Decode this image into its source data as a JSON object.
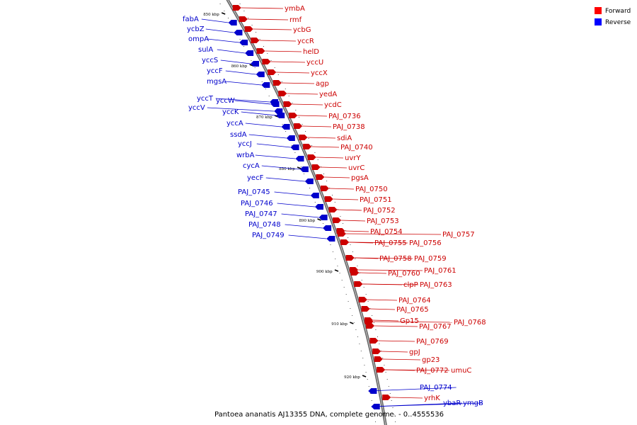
{
  "caption": "Pantoea ananatis AJ13355 DNA, complete genome. - 0..4555536",
  "legend": [
    {
      "label": "Forward",
      "color": "#ff0000"
    },
    {
      "label": "Reverse",
      "color": "#0000ff"
    }
  ],
  "ticks": [
    {
      "label": "850 kbp"
    },
    {
      "label": "860 kbp"
    },
    {
      "label": "870 kbp"
    },
    {
      "label": "880 kbp"
    },
    {
      "label": "890 kbp"
    },
    {
      "label": "900 kbp"
    },
    {
      "label": "910 kbp"
    },
    {
      "label": "920 kbp"
    }
  ],
  "forward_genes": [
    "ymbA",
    "rmf",
    "ycbG",
    "yccR",
    "helD",
    "yccU",
    "yccX",
    "agp",
    "yedA",
    "ycdC",
    "PAJ_0736",
    "PAJ_0738",
    "sdiA",
    "PAJ_0740",
    "uvrY",
    "uvrC",
    "pgsA",
    "PAJ_0750",
    "PAJ_0751",
    "PAJ_0752",
    "PAJ_0753",
    "PAJ_0754",
    "PAJ_0755",
    "PAJ_0756",
    "PAJ_0757",
    "PAJ_0758",
    "PAJ_0759",
    "PAJ_0760",
    "PAJ_0761",
    "clpP",
    "PAJ_0763",
    "PAJ_0764",
    "PAJ_0765",
    "Gp15",
    "PAJ_0767",
    "PAJ_0768",
    "PAJ_0769",
    "gpJ",
    "gp23",
    "PAJ_0772",
    "umuC",
    "yrhK"
  ],
  "reverse_genes": [
    "fabA",
    "ycbZ",
    "ompA",
    "sulA",
    "yccS",
    "yccF",
    "mgsA",
    "yccT",
    "yccW",
    "yccV",
    "yccK",
    "yccA",
    "ssdA",
    "yccJ",
    "wrbA",
    "cycA",
    "yecF",
    "PAJ_0745",
    "PAJ_0746",
    "PAJ_0747",
    "PAJ_0748",
    "PAJ_0749",
    "PAJ_0774",
    "ybaR",
    "ymgB"
  ]
}
